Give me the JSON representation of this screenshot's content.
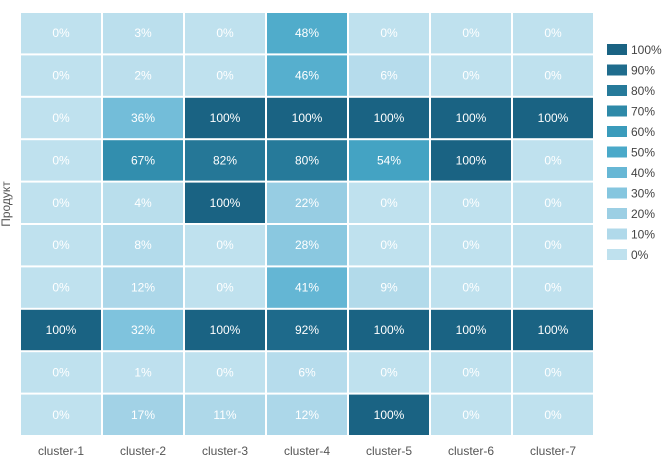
{
  "chart_data": {
    "type": "heatmap",
    "ylabel": "Продукт",
    "x_categories": [
      "cluster-1",
      "cluster-2",
      "cluster-3",
      "cluster-4",
      "cluster-5",
      "cluster-6",
      "cluster-7"
    ],
    "values": [
      [
        0,
        3,
        0,
        48,
        0,
        0,
        0
      ],
      [
        0,
        2,
        0,
        46,
        6,
        0,
        0
      ],
      [
        0,
        36,
        100,
        100,
        100,
        100,
        100
      ],
      [
        0,
        67,
        82,
        80,
        54,
        100,
        0
      ],
      [
        0,
        4,
        100,
        22,
        0,
        0,
        0
      ],
      [
        0,
        8,
        0,
        28,
        0,
        0,
        0
      ],
      [
        0,
        12,
        0,
        41,
        9,
        0,
        0
      ],
      [
        100,
        32,
        100,
        92,
        100,
        100,
        100
      ],
      [
        0,
        1,
        0,
        6,
        0,
        0,
        0
      ],
      [
        0,
        17,
        11,
        12,
        100,
        0,
        0
      ]
    ],
    "value_suffix": "%",
    "legend": {
      "placement": "right",
      "labels": [
        "100%",
        "90%",
        "80%",
        "70%",
        "60%",
        "50%",
        "40%",
        "30%",
        "20%",
        "10%",
        "0%"
      ],
      "colors": [
        "#1a6383",
        "#1f6c8d",
        "#267a9a",
        "#2e89a8",
        "#3a9bbb",
        "#4aa9c9",
        "#67b7d5",
        "#85c6df",
        "#9ccfe4",
        "#b0d9ea",
        "#bfe1ee"
      ]
    },
    "grid": false
  }
}
